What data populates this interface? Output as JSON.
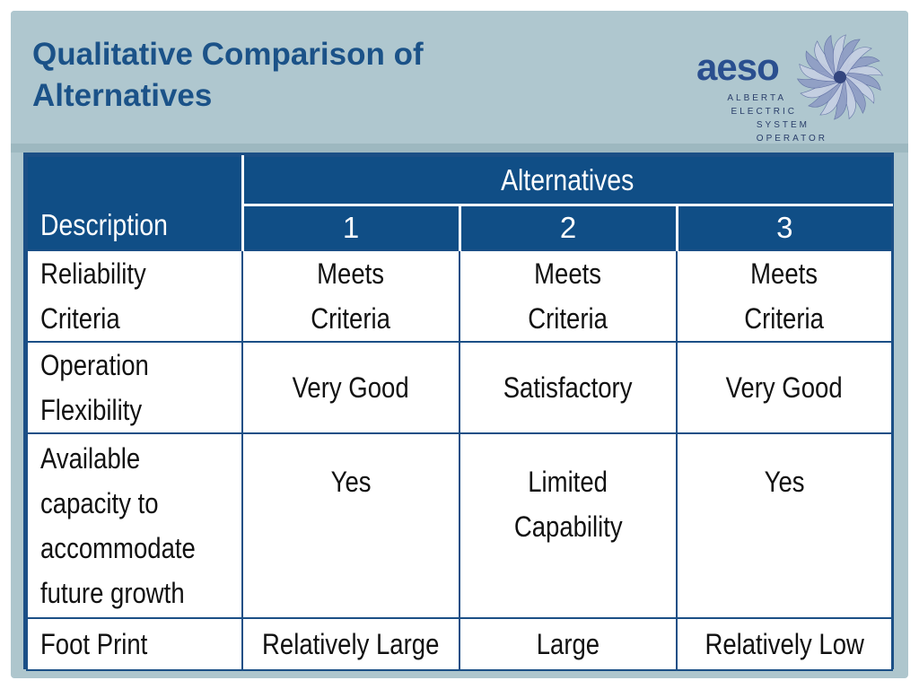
{
  "header": {
    "title_line1": "Qualitative Comparison of",
    "title_line2": "Alternatives"
  },
  "logo": {
    "wordmark": "aeso",
    "sub_line1": "ALBERTA",
    "sub_line2": "ELECTRIC",
    "sub_line3": "SYSTEM",
    "sub_line4": "OPERATOR"
  },
  "colors": {
    "title": "#1b5288",
    "table_header_bg": "#104e86",
    "slide_bg": "#aec6cd"
  },
  "table": {
    "description_header": "Description",
    "alternatives_header": "Alternatives",
    "alternative_numbers": [
      "1",
      "2",
      "3"
    ],
    "rows": [
      {
        "description": [
          "Reliability",
          "Criteria"
        ],
        "values": [
          [
            "Meets",
            "Criteria"
          ],
          [
            "Meets",
            "Criteria"
          ],
          [
            "Meets",
            "Criteria"
          ]
        ]
      },
      {
        "description": [
          "Operation",
          "Flexibility"
        ],
        "values": [
          [
            "Very Good"
          ],
          [
            "Satisfactory"
          ],
          [
            "Very Good"
          ]
        ]
      },
      {
        "description": [
          "Available",
          "capacity to",
          "accommodate",
          "future growth"
        ],
        "values": [
          [
            "Yes"
          ],
          [
            "Limited",
            "Capability"
          ],
          [
            "Yes"
          ]
        ]
      },
      {
        "description": [
          "Foot Print"
        ],
        "values": [
          [
            "Relatively Large"
          ],
          [
            "Large"
          ],
          [
            "Relatively Low"
          ]
        ]
      }
    ]
  }
}
